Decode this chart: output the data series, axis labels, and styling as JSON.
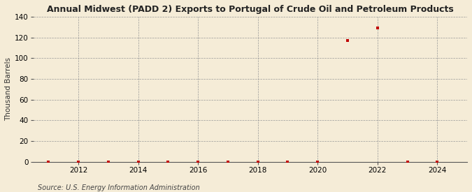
{
  "title": "Annual Midwest (PADD 2) Exports to Portugal of Crude Oil and Petroleum Products",
  "ylabel": "Thousand Barrels",
  "source_text": "Source: U.S. Energy Information Administration",
  "background_color": "#f5ecd7",
  "plot_background_color": "#f5ecd7",
  "marker_color": "#c00000",
  "xlim": [
    2010.5,
    2025.0
  ],
  "ylim": [
    0,
    140
  ],
  "yticks": [
    0,
    20,
    40,
    60,
    80,
    100,
    120,
    140
  ],
  "xticks": [
    2012,
    2014,
    2016,
    2018,
    2020,
    2022,
    2024
  ],
  "data_x": [
    2011,
    2012,
    2013,
    2014,
    2015,
    2016,
    2017,
    2018,
    2019,
    2020,
    2021,
    2022,
    2023,
    2024
  ],
  "data_y": [
    0,
    0,
    0,
    0,
    0,
    0,
    0,
    0,
    0,
    0,
    117,
    129,
    0,
    0
  ]
}
